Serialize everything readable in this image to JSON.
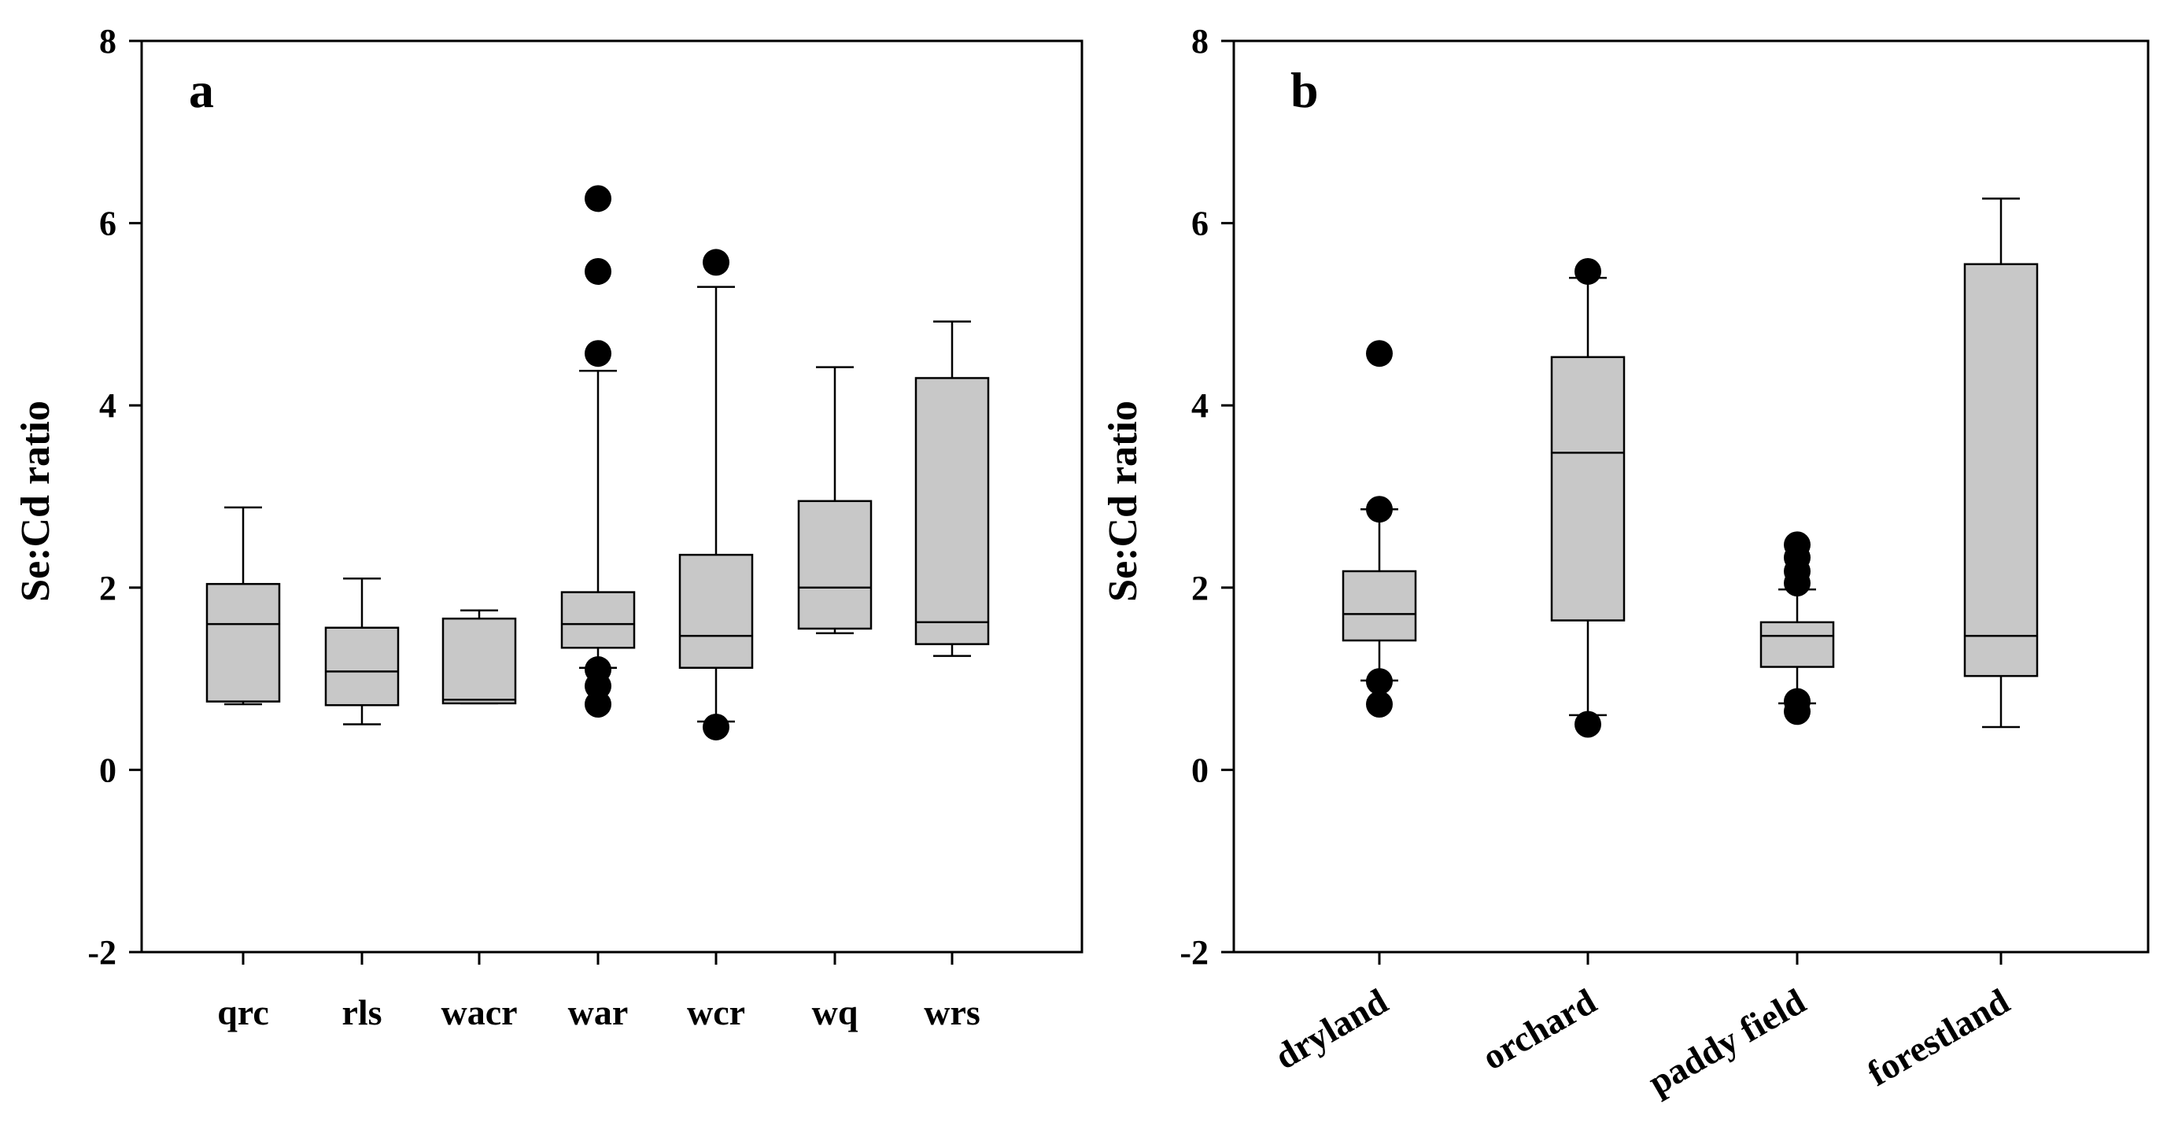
{
  "chart_data": [
    {
      "type": "boxplot",
      "panel_label": "a",
      "ylabel": "Se:Cd ratio",
      "ylim": [
        -2,
        8
      ],
      "yticks": [
        -2,
        0,
        2,
        4,
        6,
        8
      ],
      "categories": [
        "qrc",
        "rls",
        "wacr",
        "war",
        "wcr",
        "wq",
        "wrs"
      ],
      "boxes": [
        {
          "category": "qrc",
          "whisker_low": 0.72,
          "q1": 0.75,
          "median": 1.6,
          "q3": 2.04,
          "whisker_high": 2.88,
          "outliers": []
        },
        {
          "category": "rls",
          "whisker_low": 0.5,
          "q1": 0.71,
          "median": 1.08,
          "q3": 1.56,
          "whisker_high": 2.1,
          "outliers": []
        },
        {
          "category": "wacr",
          "whisker_low": 0.73,
          "q1": 0.73,
          "median": 0.77,
          "q3": 1.66,
          "whisker_high": 1.75,
          "outliers": []
        },
        {
          "category": "war",
          "whisker_low": 1.12,
          "q1": 1.34,
          "median": 1.6,
          "q3": 1.95,
          "whisker_high": 4.38,
          "outliers": [
            6.27,
            5.47,
            4.57,
            1.1,
            0.92,
            0.72
          ]
        },
        {
          "category": "wcr",
          "whisker_low": 0.53,
          "q1": 1.12,
          "median": 1.47,
          "q3": 2.36,
          "whisker_high": 5.3,
          "outliers": [
            5.57,
            0.47
          ]
        },
        {
          "category": "wq",
          "whisker_low": 1.5,
          "q1": 1.55,
          "median": 2.0,
          "q3": 2.95,
          "whisker_high": 4.42,
          "outliers": []
        },
        {
          "category": "wrs",
          "whisker_low": 1.25,
          "q1": 1.38,
          "median": 1.62,
          "q3": 4.3,
          "whisker_high": 4.92,
          "outliers": []
        }
      ]
    },
    {
      "type": "boxplot",
      "panel_label": "b",
      "ylabel": "Se:Cd ratio",
      "ylim": [
        -2,
        8
      ],
      "yticks": [
        -2,
        0,
        2,
        4,
        6,
        8
      ],
      "categories": [
        "dryland",
        "orchard",
        "paddy field",
        "forestland"
      ],
      "boxes": [
        {
          "category": "dryland",
          "whisker_low": 0.98,
          "q1": 1.42,
          "median": 1.71,
          "q3": 2.18,
          "whisker_high": 2.86,
          "outliers": [
            4.57,
            2.86,
            0.97,
            0.72
          ]
        },
        {
          "category": "orchard",
          "whisker_low": 0.6,
          "q1": 1.64,
          "median": 3.48,
          "q3": 4.53,
          "whisker_high": 5.4,
          "outliers": [
            5.47,
            0.5
          ]
        },
        {
          "category": "paddy field",
          "whisker_low": 0.73,
          "q1": 1.13,
          "median": 1.47,
          "q3": 1.62,
          "whisker_high": 1.98,
          "outliers": [
            2.47,
            2.33,
            2.18,
            2.05,
            0.75,
            0.64
          ]
        },
        {
          "category": "forestland",
          "whisker_low": 0.47,
          "q1": 1.03,
          "median": 1.47,
          "q3": 5.55,
          "whisker_high": 6.27,
          "outliers": []
        }
      ]
    }
  ]
}
